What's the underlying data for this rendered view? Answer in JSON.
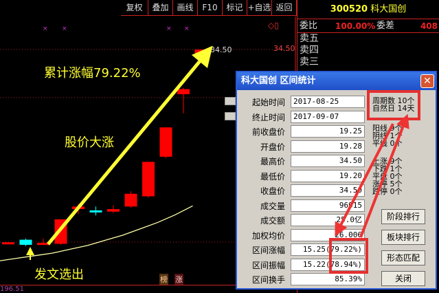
{
  "toolbar": [
    "复权",
    "叠加",
    "画线",
    "F10",
    "标记",
    "+自选",
    "返回"
  ],
  "stock": {
    "code": "300520",
    "name": "科大国创"
  },
  "quote": {
    "wb_label": "委比",
    "wb_value": "100.00%",
    "wc_label": "委差",
    "wc_value": "408",
    "sell": [
      "卖五",
      "卖四",
      "卖三"
    ]
  },
  "chart": {
    "max_label": "34.50",
    "axis_label": "34.50",
    "bottom_value": "196.51",
    "badges": [
      "榜",
      "涨"
    ],
    "up_color": "#ff0000",
    "down_color": "#00ffff",
    "ma_color": "#ffffaa"
  },
  "annotations": {
    "cum_gain": "累计涨幅79.22%",
    "big_rise": "股价大涨",
    "picked": "发文选出"
  },
  "chart_data": {
    "type": "candlestick",
    "ylim": [
      19,
      34.5
    ],
    "candles": [
      {
        "o": 19.3,
        "c": 19.4,
        "h": 19.4,
        "l": 19.3
      },
      {
        "o": 19.6,
        "c": 19.2,
        "h": 19.7,
        "l": 19.1
      },
      {
        "o": 19.25,
        "c": 19.35,
        "h": 19.7,
        "l": 19.2
      },
      {
        "o": 19.28,
        "c": 21.2,
        "h": 21.2,
        "l": 19.2
      },
      {
        "o": 22.0,
        "c": 22.2,
        "h": 22.4,
        "l": 21.6
      },
      {
        "o": 21.9,
        "c": 21.8,
        "h": 22.2,
        "l": 21.5
      },
      {
        "o": 21.8,
        "c": 22.0,
        "h": 22.3,
        "l": 21.7
      },
      {
        "o": 22.2,
        "c": 23.2,
        "h": 23.4,
        "l": 22.1
      },
      {
        "o": 23.0,
        "c": 25.7,
        "h": 25.7,
        "l": 22.9
      },
      {
        "o": 26.1,
        "c": 28.4,
        "h": 28.4,
        "l": 26.0
      },
      {
        "o": 31.0,
        "c": 31.4,
        "h": 31.5,
        "l": 29.5
      },
      {
        "o": 34.1,
        "c": 34.5,
        "h": 34.5,
        "l": 34.0
      }
    ],
    "ma": [
      18.6,
      18.8,
      19.0,
      19.2,
      19.5,
      19.8,
      20.2,
      20.6,
      21.1,
      21.6,
      22.2,
      22.9
    ]
  },
  "dialog": {
    "title": "科大国创  区间统计",
    "close": "✕",
    "rows": [
      {
        "label": "起始时间",
        "value": "2017-08-25"
      },
      {
        "label": "终止时间",
        "value": "2017-09-07"
      },
      {
        "label": "前收盘价",
        "value": "19.25"
      },
      {
        "label": "开盘价",
        "value": "19.28"
      },
      {
        "label": "最高价",
        "value": "34.50"
      },
      {
        "label": "最低价",
        "value": "19.20"
      },
      {
        "label": "收盘价",
        "value": "34.50"
      },
      {
        "label": "成交量",
        "value": "96915"
      },
      {
        "label": "成交额",
        "value": "25.0亿"
      },
      {
        "label": "加权均价",
        "value": "26.006"
      },
      {
        "label": "区间涨幅",
        "value": "15.25(79.22%)"
      },
      {
        "label": "区间振幅",
        "value": "15.22(78.94%)"
      },
      {
        "label": "区间换手",
        "value": "85.39%"
      }
    ],
    "stats": [
      "周期数 10个",
      "自然日 14天",
      "阳线 9个",
      "阴线 1个",
      "平线 0个",
      "上涨 9个",
      "下跌 1个",
      "平盘 0个",
      "涨停 5个",
      "跌停 0个"
    ],
    "buttons": [
      "阶段排行",
      "板块排行",
      "形态匹配",
      "关闭"
    ]
  }
}
